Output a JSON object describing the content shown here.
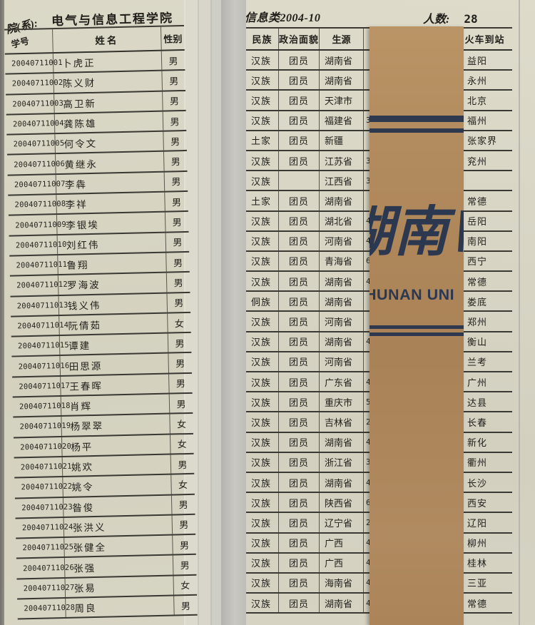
{
  "left_page": {
    "dept_label": "院(系):",
    "dept_value": "电气与信息工程学院",
    "columns": {
      "id": "学号",
      "name": "姓名",
      "gender": "性别"
    },
    "rows": [
      {
        "id": "20040711001",
        "name": "卜虎正",
        "gender": "男"
      },
      {
        "id": "20040711002",
        "name": "陈义财",
        "gender": "男"
      },
      {
        "id": "20040711003",
        "name": "高卫新",
        "gender": "男"
      },
      {
        "id": "20040711004",
        "name": "龚陈雄",
        "gender": "男"
      },
      {
        "id": "20040711005",
        "name": "何令文",
        "gender": "男"
      },
      {
        "id": "20040711006",
        "name": "黄继永",
        "gender": "男"
      },
      {
        "id": "20040711007",
        "name": "李犇",
        "gender": "男"
      },
      {
        "id": "20040711008",
        "name": "李祥",
        "gender": "男"
      },
      {
        "id": "20040711009",
        "name": "李银埃",
        "gender": "男"
      },
      {
        "id": "20040711010",
        "name": "刘红伟",
        "gender": "男"
      },
      {
        "id": "20040711011",
        "name": "鲁翔",
        "gender": "男"
      },
      {
        "id": "20040711012",
        "name": "罗海波",
        "gender": "男"
      },
      {
        "id": "20040711013",
        "name": "钱义伟",
        "gender": "男"
      },
      {
        "id": "20040711014",
        "name": "阮倩茹",
        "gender": "女"
      },
      {
        "id": "20040711015",
        "name": "谭建",
        "gender": "男"
      },
      {
        "id": "20040711016",
        "name": "田思源",
        "gender": "男"
      },
      {
        "id": "20040711017",
        "name": "王春晖",
        "gender": "男"
      },
      {
        "id": "20040711018",
        "name": "肖辉",
        "gender": "男"
      },
      {
        "id": "20040711019",
        "name": "杨翠翠",
        "gender": "女"
      },
      {
        "id": "20040711020",
        "name": "杨平",
        "gender": "女"
      },
      {
        "id": "20040711021",
        "name": "姚欢",
        "gender": "男"
      },
      {
        "id": "20040711022",
        "name": "姚令",
        "gender": "女"
      },
      {
        "id": "20040711023",
        "name": "昝俊",
        "gender": "男"
      },
      {
        "id": "20040711024",
        "name": "张洪义",
        "gender": "男"
      },
      {
        "id": "20040711025",
        "name": "张健全",
        "gender": "男"
      },
      {
        "id": "20040711026",
        "name": "张强",
        "gender": "男"
      },
      {
        "id": "20040711027",
        "name": "张易",
        "gender": "女"
      },
      {
        "id": "20040711028",
        "name": "周良",
        "gender": "男"
      }
    ]
  },
  "right_page": {
    "class_title": "信息类2004-10",
    "count_label": "人数:",
    "count_value": "28",
    "columns": {
      "ethnicity": "民族",
      "political": "政治面貌",
      "origin": "生源",
      "station": "火车到站"
    },
    "rows": [
      {
        "ethnicity": "汉族",
        "political": "团员",
        "origin": "湖南省",
        "partial": "",
        "station": "益阳"
      },
      {
        "ethnicity": "汉族",
        "political": "团员",
        "origin": "湖南省",
        "partial": "",
        "station": "永州"
      },
      {
        "ethnicity": "汉族",
        "political": "团员",
        "origin": "天津市",
        "partial": "",
        "station": "北京"
      },
      {
        "ethnicity": "汉族",
        "political": "团员",
        "origin": "福建省",
        "partial": "3",
        "station": "福州"
      },
      {
        "ethnicity": "土家",
        "political": "团员",
        "origin": "新疆",
        "partial": "",
        "station": "张家界"
      },
      {
        "ethnicity": "汉族",
        "political": "团员",
        "origin": "江苏省",
        "partial": "3",
        "station": "兖州"
      },
      {
        "ethnicity": "汉族",
        "political": "",
        "origin": "江西省",
        "partial": "3",
        "station": ""
      },
      {
        "ethnicity": "土家",
        "political": "团员",
        "origin": "湖南省",
        "partial": "",
        "station": "常德"
      },
      {
        "ethnicity": "汉族",
        "political": "团员",
        "origin": "湖北省",
        "partial": "4",
        "station": "岳阳"
      },
      {
        "ethnicity": "汉族",
        "political": "团员",
        "origin": "河南省",
        "partial": "4",
        "station": "南阳"
      },
      {
        "ethnicity": "汉族",
        "political": "团员",
        "origin": "青海省",
        "partial": "6",
        "station": "西宁"
      },
      {
        "ethnicity": "汉族",
        "political": "团员",
        "origin": "湖南省",
        "partial": "4",
        "station": "常德"
      },
      {
        "ethnicity": "侗族",
        "political": "团员",
        "origin": "湖南省",
        "partial": "",
        "station": "娄底"
      },
      {
        "ethnicity": "汉族",
        "political": "团员",
        "origin": "河南省",
        "partial": "",
        "station": "郑州"
      },
      {
        "ethnicity": "汉族",
        "political": "团员",
        "origin": "湖南省",
        "partial": "4",
        "station": "衡山"
      },
      {
        "ethnicity": "汉族",
        "political": "团员",
        "origin": "河南省",
        "partial": "",
        "station": "兰考"
      },
      {
        "ethnicity": "汉族",
        "political": "团员",
        "origin": "广东省",
        "partial": "4",
        "station": "广州"
      },
      {
        "ethnicity": "汉族",
        "political": "团员",
        "origin": "重庆市",
        "partial": "5",
        "station": "达县"
      },
      {
        "ethnicity": "汉族",
        "political": "团员",
        "origin": "吉林省",
        "partial": "2",
        "station": "长春"
      },
      {
        "ethnicity": "汉族",
        "political": "团员",
        "origin": "湖南省",
        "partial": "4",
        "station": "新化"
      },
      {
        "ethnicity": "汉族",
        "political": "团员",
        "origin": "浙江省",
        "partial": "3",
        "station": "衢州"
      },
      {
        "ethnicity": "汉族",
        "political": "团员",
        "origin": "湖南省",
        "partial": "4",
        "station": "长沙"
      },
      {
        "ethnicity": "汉族",
        "political": "团员",
        "origin": "陕西省",
        "partial": "6",
        "station": "西安"
      },
      {
        "ethnicity": "汉族",
        "political": "团员",
        "origin": "辽宁省",
        "partial": "2",
        "station": "辽阳"
      },
      {
        "ethnicity": "汉族",
        "political": "团员",
        "origin": "广西",
        "partial": "4",
        "station": "柳州"
      },
      {
        "ethnicity": "汉族",
        "political": "团员",
        "origin": "广西",
        "partial": "4",
        "station": "桂林"
      },
      {
        "ethnicity": "汉族",
        "political": "团员",
        "origin": "海南省",
        "partial": "4",
        "station": "三亚"
      },
      {
        "ethnicity": "汉族",
        "political": "团员",
        "origin": "湖南省",
        "partial": "4",
        "station": "常德"
      }
    ]
  },
  "bookmark": {
    "cn_text": "湖南",
    "en_text": "HUNAN UNI",
    "card_color": "#b08a5d",
    "ink_color": "#2e3950"
  }
}
